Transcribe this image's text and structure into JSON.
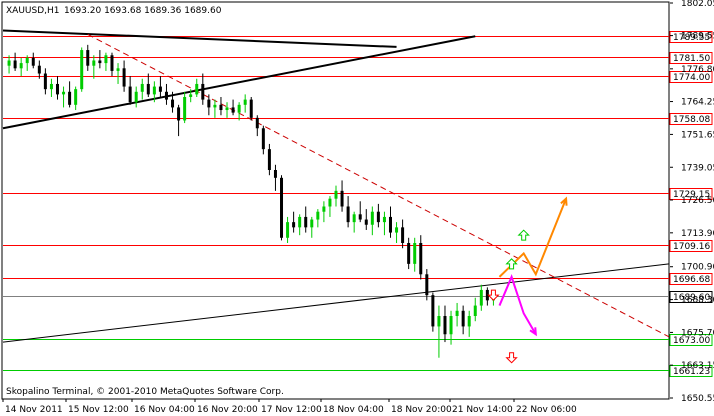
{
  "header": {
    "symbol": "XAUUSD,H1",
    "ohlc": "1693.20 1693.68 1689.36 1689.60"
  },
  "footer": {
    "credit": "Skopalino Terminal, © 2001-2010 MetaQuotes Software Corp."
  },
  "colors": {
    "bull": "#00cc00",
    "bear": "#000000",
    "resistance": "#ff0000",
    "support": "#00cc00",
    "trendline": "#000000",
    "dashed_trend": "#cc0000",
    "scenario_up": "#ff8800",
    "scenario_down": "#ff00ff",
    "up_arrow": "#00cc00",
    "down_arrow": "#ff0000",
    "current_price": "#808080"
  },
  "chart_data": {
    "type": "candlestick",
    "y_axis_labels": [
      "1802.05",
      "1789.55",
      "1776.80",
      "1764.25",
      "1751.65",
      "1739.05",
      "1726.50",
      "1713.90",
      "1700.90",
      "1688.30",
      "1675.70",
      "1663.15",
      "1650.55"
    ],
    "ylim": [
      1650.55,
      1802.05
    ],
    "x_axis_labels": [
      "14 Nov 2011",
      "15 Nov 12:00",
      "16 Nov 04:00",
      "16 Nov 20:00",
      "17 Nov 12:00",
      "18 Nov 04:00",
      "18 Nov 20:00",
      "21 Nov 14:00",
      "22 Nov 06:00"
    ],
    "price_levels": [
      {
        "label": "1789.55",
        "value": 1789.55,
        "kind": "resistance"
      },
      {
        "label": "1781.50",
        "value": 1781.5,
        "kind": "resistance"
      },
      {
        "label": "1774.00",
        "value": 1774.0,
        "kind": "resistance"
      },
      {
        "label": "1758.08",
        "value": 1758.08,
        "kind": "resistance"
      },
      {
        "label": "1729.15",
        "value": 1729.15,
        "kind": "resistance"
      },
      {
        "label": "1709.16",
        "value": 1709.16,
        "kind": "resistance"
      },
      {
        "label": "1696.68",
        "value": 1696.68,
        "kind": "resistance"
      },
      {
        "label": "1673.00",
        "value": 1673.0,
        "kind": "support"
      },
      {
        "label": "1661.23",
        "value": 1661.23,
        "kind": "support"
      }
    ],
    "current_price": {
      "label": "1689.60",
      "value": 1689.6
    },
    "trendlines": [
      {
        "style": "solid-thick",
        "points": [
          [
            0,
            1791.5
          ],
          [
            65,
            1785.2
          ]
        ]
      },
      {
        "style": "solid-thick",
        "points": [
          [
            0,
            1754.0
          ],
          [
            78,
            1789.3
          ]
        ]
      },
      {
        "style": "solid-thin",
        "points": [
          [
            0,
            1672.0
          ],
          [
            110,
            1702.0
          ]
        ]
      },
      {
        "style": "dashed",
        "points": [
          [
            14,
            1790.0
          ],
          [
            110,
            1674.0
          ]
        ]
      }
    ],
    "candles": [
      [
        1,
        1778,
        1782,
        1775,
        1780
      ],
      [
        2,
        1780,
        1783,
        1776,
        1777
      ],
      [
        3,
        1777,
        1781,
        1774,
        1779
      ],
      [
        4,
        1779,
        1782,
        1776,
        1781
      ],
      [
        5,
        1781,
        1783,
        1777,
        1778
      ],
      [
        6,
        1778,
        1780,
        1773,
        1775
      ],
      [
        7,
        1775,
        1777,
        1767,
        1769
      ],
      [
        8,
        1769,
        1773,
        1766,
        1771
      ],
      [
        9,
        1771,
        1774,
        1765,
        1767
      ],
      [
        10,
        1767,
        1770,
        1762,
        1768
      ],
      [
        11,
        1768,
        1772,
        1762,
        1763
      ],
      [
        12,
        1763,
        1770,
        1761,
        1769
      ],
      [
        13,
        1769,
        1785,
        1768,
        1784
      ],
      [
        14,
        1784,
        1786,
        1776,
        1778
      ],
      [
        15,
        1778,
        1782,
        1773,
        1780
      ],
      [
        16,
        1780,
        1784,
        1777,
        1779
      ],
      [
        17,
        1779,
        1783,
        1776,
        1782
      ],
      [
        18,
        1782,
        1783,
        1774,
        1776
      ],
      [
        19,
        1776,
        1779,
        1771,
        1777
      ],
      [
        20,
        1777,
        1780,
        1768,
        1770
      ],
      [
        21,
        1770,
        1774,
        1763,
        1764
      ],
      [
        22,
        1764,
        1770,
        1762,
        1768
      ],
      [
        23,
        1768,
        1773,
        1765,
        1771
      ],
      [
        24,
        1771,
        1775,
        1766,
        1767
      ],
      [
        25,
        1767,
        1772,
        1764,
        1770
      ],
      [
        26,
        1770,
        1774,
        1766,
        1768
      ],
      [
        27,
        1768,
        1771,
        1763,
        1765
      ],
      [
        28,
        1765,
        1768,
        1760,
        1762
      ],
      [
        29,
        1762,
        1763,
        1751,
        1757
      ],
      [
        30,
        1757,
        1768,
        1756,
        1766
      ],
      [
        31,
        1766,
        1769,
        1764,
        1767
      ],
      [
        32,
        1767,
        1773,
        1766,
        1771
      ],
      [
        33,
        1771,
        1775,
        1763,
        1765
      ],
      [
        34,
        1765,
        1767,
        1759,
        1762
      ],
      [
        35,
        1762,
        1765,
        1758,
        1763
      ],
      [
        36,
        1763,
        1766,
        1759,
        1761
      ],
      [
        37,
        1761,
        1764,
        1758,
        1762
      ],
      [
        38,
        1762,
        1765,
        1759,
        1760
      ],
      [
        39,
        1760,
        1764,
        1757,
        1763
      ],
      [
        40,
        1763,
        1767,
        1760,
        1765
      ],
      [
        41,
        1765,
        1766,
        1757,
        1758
      ],
      [
        42,
        1758,
        1759,
        1751,
        1754
      ],
      [
        43,
        1754,
        1755,
        1744,
        1746
      ],
      [
        44,
        1746,
        1748,
        1736,
        1738
      ],
      [
        45,
        1738,
        1740,
        1730,
        1735
      ],
      [
        46,
        1735,
        1736,
        1711,
        1712
      ],
      [
        47,
        1712,
        1720,
        1710,
        1718
      ],
      [
        48,
        1718,
        1722,
        1714,
        1716
      ],
      [
        49,
        1716,
        1721,
        1713,
        1720
      ],
      [
        50,
        1720,
        1724,
        1714,
        1716
      ],
      [
        51,
        1716,
        1720,
        1712,
        1719
      ],
      [
        52,
        1719,
        1723,
        1716,
        1722
      ],
      [
        53,
        1722,
        1726,
        1718,
        1724
      ],
      [
        54,
        1724,
        1728,
        1720,
        1727
      ],
      [
        55,
        1727,
        1732,
        1724,
        1730
      ],
      [
        56,
        1730,
        1734,
        1722,
        1724
      ],
      [
        57,
        1724,
        1728,
        1716,
        1718
      ],
      [
        58,
        1718,
        1722,
        1714,
        1721
      ],
      [
        59,
        1721,
        1726,
        1718,
        1719
      ],
      [
        60,
        1719,
        1723,
        1715,
        1717
      ],
      [
        61,
        1717,
        1724,
        1713,
        1722
      ],
      [
        62,
        1722,
        1725,
        1716,
        1718
      ],
      [
        63,
        1718,
        1722,
        1713,
        1720
      ],
      [
        64,
        1720,
        1724,
        1712,
        1714
      ],
      [
        65,
        1714,
        1718,
        1710,
        1716
      ],
      [
        66,
        1716,
        1719,
        1708,
        1710
      ],
      [
        67,
        1710,
        1712,
        1700,
        1702
      ],
      [
        68,
        1702,
        1712,
        1699,
        1710
      ],
      [
        69,
        1710,
        1713,
        1696,
        1698
      ],
      [
        70,
        1698,
        1700,
        1688,
        1690
      ],
      [
        71,
        1690,
        1691,
        1676,
        1678
      ],
      [
        72,
        1678,
        1686,
        1666,
        1682
      ],
      [
        73,
        1682,
        1686,
        1672,
        1675
      ],
      [
        74,
        1675,
        1684,
        1671,
        1682
      ],
      [
        75,
        1682,
        1687,
        1678,
        1684
      ],
      [
        76,
        1684,
        1686,
        1675,
        1678
      ],
      [
        77,
        1678,
        1684,
        1674,
        1682
      ],
      [
        78,
        1682,
        1689,
        1680,
        1686
      ],
      [
        79,
        1686,
        1694,
        1684,
        1692
      ],
      [
        80,
        1692,
        1693,
        1686,
        1688
      ],
      [
        81,
        1688,
        1692,
        1686,
        1689
      ]
    ],
    "scenarios": [
      {
        "name": "up",
        "points": [
          [
            82,
            1697
          ],
          [
            86,
            1706
          ],
          [
            88,
            1698
          ],
          [
            93,
            1727
          ]
        ]
      },
      {
        "name": "down",
        "points": [
          [
            82,
            1686
          ],
          [
            84,
            1697
          ],
          [
            86,
            1683
          ],
          [
            88,
            1675
          ]
        ]
      }
    ],
    "signal_arrows": [
      {
        "dir": "up",
        "at": [
          84,
          1702
        ]
      },
      {
        "dir": "up",
        "at": [
          86,
          1713
        ]
      },
      {
        "dir": "down",
        "at": [
          84,
          1666
        ]
      },
      {
        "dir": "down",
        "at": [
          81,
          1690
        ]
      }
    ]
  }
}
